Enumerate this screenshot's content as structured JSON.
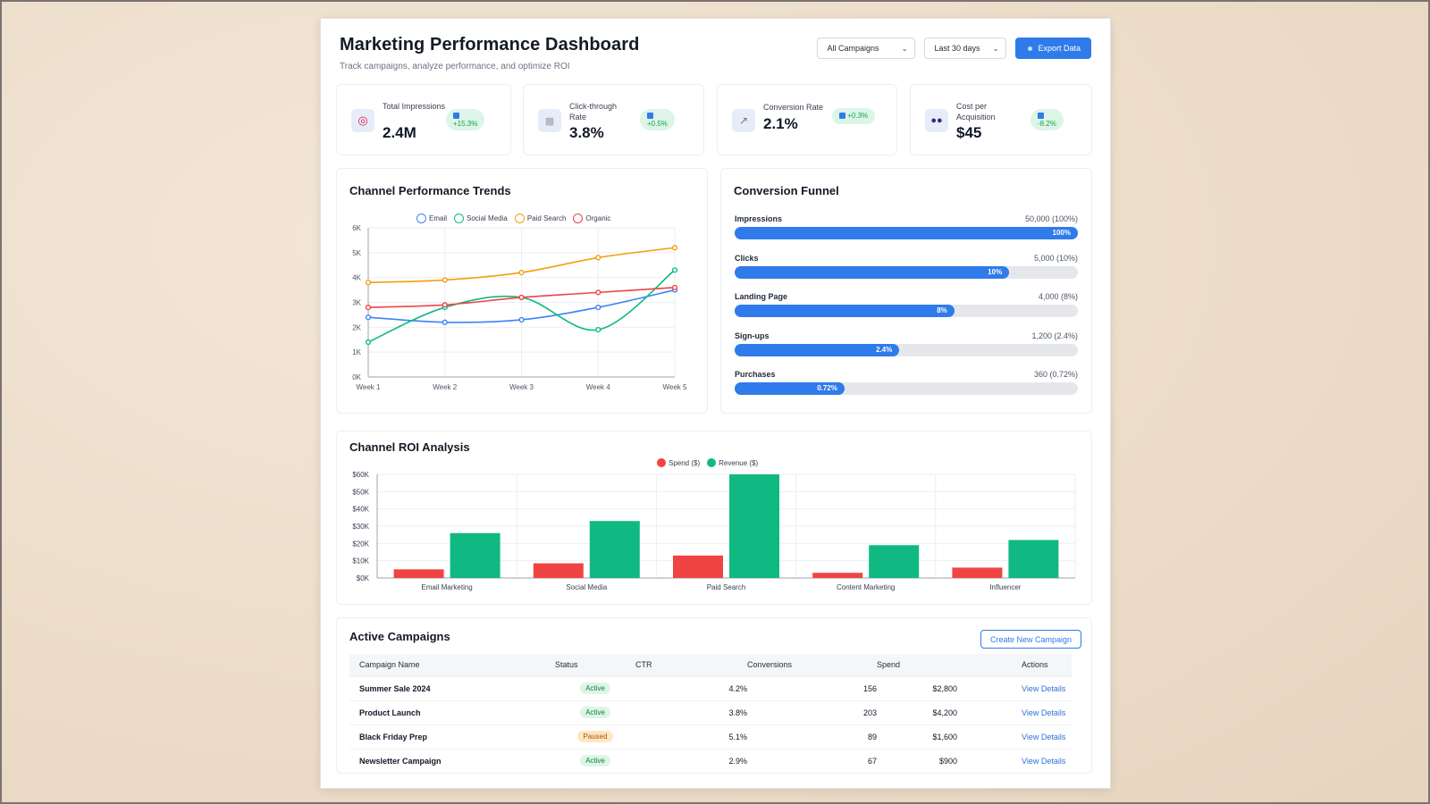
{
  "header": {
    "title": "Marketing Performance Dashboard",
    "subtitle": "Track campaigns, analyze performance, and optimize ROI",
    "campaign_filter": "All Campaigns",
    "date_filter": "Last 30 days",
    "export_label": "Export Data"
  },
  "kpis": [
    {
      "label": "Total Impressions",
      "value": "2.4M",
      "change": "+15.3%",
      "icon": "target-icon"
    },
    {
      "label": "Click-through Rate",
      "value": "3.8%",
      "change": "+0.5%",
      "icon": "clipboard-icon"
    },
    {
      "label": "Conversion Rate",
      "value": "2.1%",
      "change": "+0.3%",
      "icon": "chart-icon"
    },
    {
      "label": "Cost per Acquisition",
      "value": "$45",
      "change": "-8.2%",
      "icon": "users-icon"
    }
  ],
  "trends": {
    "title": "Channel Performance Trends",
    "chart_data": {
      "type": "line",
      "x": [
        "Week 1",
        "Week 2",
        "Week 3",
        "Week 4",
        "Week 5"
      ],
      "yticks": [
        "0K",
        "1K",
        "2K",
        "3K",
        "4K",
        "5K",
        "6K"
      ],
      "ylim": [
        0,
        6000
      ],
      "series": [
        {
          "name": "Email",
          "color": "#3b82f6",
          "values": [
            2400,
            2200,
            2300,
            2800,
            3500
          ]
        },
        {
          "name": "Social Media",
          "color": "#10b981",
          "values": [
            1400,
            2800,
            3200,
            1900,
            4300
          ]
        },
        {
          "name": "Paid Search",
          "color": "#f59e0b",
          "values": [
            3800,
            3900,
            4200,
            4800,
            5200
          ]
        },
        {
          "name": "Organic",
          "color": "#ef4444",
          "values": [
            2800,
            2900,
            3200,
            3400,
            3600
          ]
        }
      ]
    }
  },
  "funnel": {
    "title": "Conversion Funnel",
    "stages": [
      {
        "label": "Impressions",
        "value": "50,000 (100%)",
        "pct_label": "100%",
        "fill": 1.0
      },
      {
        "label": "Clicks",
        "value": "5,000 (10%)",
        "pct_label": "10%",
        "fill": 0.8
      },
      {
        "label": "Landing Page",
        "value": "4,000 (8%)",
        "pct_label": "8%",
        "fill": 0.64
      },
      {
        "label": "Sign-ups",
        "value": "1,200 (2.4%)",
        "pct_label": "2.4%",
        "fill": 0.48
      },
      {
        "label": "Purchases",
        "value": "360 (0.72%)",
        "pct_label": "0.72%",
        "fill": 0.32
      }
    ]
  },
  "roi": {
    "title": "Channel ROI Analysis",
    "chart_data": {
      "type": "bar",
      "categories": [
        "Email Marketing",
        "Social Media",
        "Paid Search",
        "Content Marketing",
        "Influencer"
      ],
      "yticks": [
        "$0K",
        "$10K",
        "$20K",
        "$30K",
        "$40K",
        "$50K",
        "$60K"
      ],
      "ylim": [
        0,
        60000
      ],
      "series": [
        {
          "name": "Spend ($)",
          "color": "#ef4444",
          "values": [
            5000,
            8500,
            13000,
            3000,
            6000
          ]
        },
        {
          "name": "Revenue ($)",
          "color": "#10b981",
          "values": [
            26000,
            33000,
            61000,
            19000,
            22000
          ]
        }
      ]
    }
  },
  "campaigns": {
    "title": "Active Campaigns",
    "create_label": "Create New Campaign",
    "columns": [
      "Campaign Name",
      "Status",
      "CTR",
      "Conversions",
      "Spend",
      "Actions"
    ],
    "rows": [
      {
        "name": "Summer Sale 2024",
        "status": "Active",
        "ctr": "4.2%",
        "conversions": "156",
        "spend": "$2,800",
        "action": "View Details"
      },
      {
        "name": "Product Launch",
        "status": "Active",
        "ctr": "3.8%",
        "conversions": "203",
        "spend": "$4,200",
        "action": "View Details"
      },
      {
        "name": "Black Friday Prep",
        "status": "Paused",
        "ctr": "5.1%",
        "conversions": "89",
        "spend": "$1,600",
        "action": "View Details"
      },
      {
        "name": "Newsletter Campaign",
        "status": "Active",
        "ctr": "2.9%",
        "conversions": "67",
        "spend": "$900",
        "action": "View Details"
      }
    ]
  }
}
